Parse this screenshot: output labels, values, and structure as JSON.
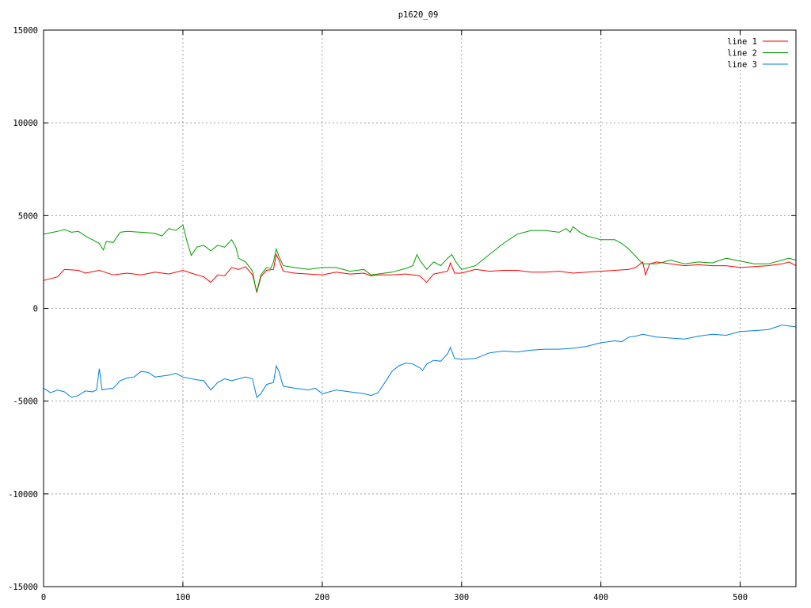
{
  "chart_data": {
    "type": "line",
    "title": "p1620_09",
    "xlabel": "",
    "ylabel": "",
    "xlim": [
      0,
      540
    ],
    "ylim": [
      -15000,
      15000
    ],
    "xticks": [
      0,
      100,
      200,
      300,
      400,
      500
    ],
    "yticks": [
      -15000,
      -10000,
      -5000,
      0,
      5000,
      10000,
      15000
    ],
    "grid": true,
    "legend_position": "top-right",
    "series": [
      {
        "name": "line 1",
        "color": "#ff0000",
        "points": [
          [
            0,
            1500
          ],
          [
            10,
            1700
          ],
          [
            15,
            2100
          ],
          [
            25,
            2050
          ],
          [
            30,
            1900
          ],
          [
            40,
            2050
          ],
          [
            50,
            1800
          ],
          [
            60,
            1900
          ],
          [
            70,
            1800
          ],
          [
            80,
            1950
          ],
          [
            90,
            1850
          ],
          [
            100,
            2050
          ],
          [
            108,
            1850
          ],
          [
            115,
            1700
          ],
          [
            120,
            1400
          ],
          [
            125,
            1800
          ],
          [
            130,
            1750
          ],
          [
            135,
            2200
          ],
          [
            140,
            2100
          ],
          [
            145,
            2250
          ],
          [
            150,
            1800
          ],
          [
            152,
            1200
          ],
          [
            153,
            850
          ],
          [
            156,
            1700
          ],
          [
            160,
            2050
          ],
          [
            165,
            2100
          ],
          [
            167,
            2900
          ],
          [
            169,
            2600
          ],
          [
            172,
            2000
          ],
          [
            180,
            1900
          ],
          [
            190,
            1850
          ],
          [
            200,
            1800
          ],
          [
            210,
            1950
          ],
          [
            220,
            1850
          ],
          [
            230,
            1900
          ],
          [
            235,
            1750
          ],
          [
            240,
            1800
          ],
          [
            250,
            1800
          ],
          [
            260,
            1850
          ],
          [
            270,
            1750
          ],
          [
            275,
            1400
          ],
          [
            280,
            1850
          ],
          [
            290,
            2000
          ],
          [
            292,
            2450
          ],
          [
            295,
            1900
          ],
          [
            300,
            1900
          ],
          [
            310,
            2100
          ],
          [
            320,
            2000
          ],
          [
            330,
            2050
          ],
          [
            340,
            2050
          ],
          [
            350,
            1950
          ],
          [
            360,
            1950
          ],
          [
            370,
            2000
          ],
          [
            380,
            1900
          ],
          [
            390,
            1950
          ],
          [
            400,
            2000
          ],
          [
            410,
            2050
          ],
          [
            420,
            2100
          ],
          [
            425,
            2200
          ],
          [
            430,
            2500
          ],
          [
            432,
            1800
          ],
          [
            435,
            2400
          ],
          [
            440,
            2500
          ],
          [
            450,
            2400
          ],
          [
            460,
            2300
          ],
          [
            470,
            2350
          ],
          [
            480,
            2300
          ],
          [
            490,
            2300
          ],
          [
            500,
            2200
          ],
          [
            510,
            2250
          ],
          [
            520,
            2300
          ],
          [
            530,
            2400
          ],
          [
            535,
            2500
          ],
          [
            540,
            2300
          ]
        ]
      },
      {
        "name": "line 2",
        "color": "#00a000",
        "points": [
          [
            0,
            4000
          ],
          [
            10,
            4150
          ],
          [
            15,
            4250
          ],
          [
            20,
            4100
          ],
          [
            25,
            4150
          ],
          [
            30,
            3900
          ],
          [
            35,
            3700
          ],
          [
            40,
            3500
          ],
          [
            43,
            3150
          ],
          [
            45,
            3600
          ],
          [
            50,
            3550
          ],
          [
            55,
            4100
          ],
          [
            60,
            4150
          ],
          [
            70,
            4100
          ],
          [
            80,
            4050
          ],
          [
            85,
            3900
          ],
          [
            90,
            4300
          ],
          [
            95,
            4200
          ],
          [
            100,
            4500
          ],
          [
            103,
            3600
          ],
          [
            106,
            2850
          ],
          [
            110,
            3300
          ],
          [
            115,
            3400
          ],
          [
            120,
            3100
          ],
          [
            125,
            3400
          ],
          [
            130,
            3300
          ],
          [
            135,
            3700
          ],
          [
            138,
            3300
          ],
          [
            140,
            2700
          ],
          [
            145,
            2500
          ],
          [
            150,
            2000
          ],
          [
            152,
            1200
          ],
          [
            153,
            900
          ],
          [
            156,
            1800
          ],
          [
            160,
            2200
          ],
          [
            163,
            2150
          ],
          [
            165,
            2500
          ],
          [
            167,
            3200
          ],
          [
            169,
            2800
          ],
          [
            172,
            2300
          ],
          [
            180,
            2200
          ],
          [
            190,
            2100
          ],
          [
            200,
            2200
          ],
          [
            210,
            2200
          ],
          [
            220,
            2000
          ],
          [
            230,
            2100
          ],
          [
            235,
            1800
          ],
          [
            240,
            1850
          ],
          [
            250,
            1950
          ],
          [
            260,
            2150
          ],
          [
            265,
            2300
          ],
          [
            268,
            2900
          ],
          [
            270,
            2600
          ],
          [
            275,
            2100
          ],
          [
            280,
            2500
          ],
          [
            285,
            2300
          ],
          [
            290,
            2700
          ],
          [
            293,
            2900
          ],
          [
            296,
            2500
          ],
          [
            300,
            2100
          ],
          [
            310,
            2300
          ],
          [
            320,
            2900
          ],
          [
            330,
            3500
          ],
          [
            340,
            4000
          ],
          [
            350,
            4200
          ],
          [
            360,
            4200
          ],
          [
            370,
            4100
          ],
          [
            375,
            4300
          ],
          [
            378,
            4100
          ],
          [
            380,
            4400
          ],
          [
            385,
            4100
          ],
          [
            390,
            3900
          ],
          [
            400,
            3700
          ],
          [
            410,
            3700
          ],
          [
            415,
            3500
          ],
          [
            420,
            3200
          ],
          [
            425,
            2800
          ],
          [
            430,
            2400
          ],
          [
            440,
            2400
          ],
          [
            450,
            2600
          ],
          [
            460,
            2400
          ],
          [
            470,
            2500
          ],
          [
            480,
            2450
          ],
          [
            490,
            2700
          ],
          [
            500,
            2550
          ],
          [
            510,
            2400
          ],
          [
            520,
            2400
          ],
          [
            530,
            2600
          ],
          [
            535,
            2700
          ],
          [
            540,
            2600
          ]
        ]
      },
      {
        "name": "line 3",
        "color": "#0080e0",
        "points": [
          [
            0,
            -4300
          ],
          [
            5,
            -4550
          ],
          [
            10,
            -4400
          ],
          [
            15,
            -4500
          ],
          [
            20,
            -4800
          ],
          [
            25,
            -4700
          ],
          [
            30,
            -4450
          ],
          [
            35,
            -4500
          ],
          [
            38,
            -4400
          ],
          [
            40,
            -3250
          ],
          [
            42,
            -4400
          ],
          [
            45,
            -4350
          ],
          [
            50,
            -4300
          ],
          [
            55,
            -3900
          ],
          [
            60,
            -3750
          ],
          [
            65,
            -3700
          ],
          [
            70,
            -3400
          ],
          [
            75,
            -3450
          ],
          [
            80,
            -3700
          ],
          [
            90,
            -3600
          ],
          [
            95,
            -3500
          ],
          [
            100,
            -3700
          ],
          [
            110,
            -3850
          ],
          [
            115,
            -3900
          ],
          [
            120,
            -4400
          ],
          [
            125,
            -4000
          ],
          [
            130,
            -3800
          ],
          [
            135,
            -3900
          ],
          [
            140,
            -3800
          ],
          [
            145,
            -3700
          ],
          [
            150,
            -3800
          ],
          [
            153,
            -4800
          ],
          [
            156,
            -4600
          ],
          [
            160,
            -4100
          ],
          [
            165,
            -4000
          ],
          [
            167,
            -3100
          ],
          [
            169,
            -3400
          ],
          [
            172,
            -4200
          ],
          [
            180,
            -4300
          ],
          [
            190,
            -4400
          ],
          [
            195,
            -4300
          ],
          [
            200,
            -4600
          ],
          [
            210,
            -4400
          ],
          [
            220,
            -4500
          ],
          [
            230,
            -4600
          ],
          [
            235,
            -4700
          ],
          [
            240,
            -4550
          ],
          [
            245,
            -4000
          ],
          [
            250,
            -3400
          ],
          [
            255,
            -3100
          ],
          [
            260,
            -2950
          ],
          [
            265,
            -3000
          ],
          [
            270,
            -3200
          ],
          [
            272,
            -3350
          ],
          [
            275,
            -3000
          ],
          [
            280,
            -2800
          ],
          [
            285,
            -2850
          ],
          [
            290,
            -2450
          ],
          [
            292,
            -2100
          ],
          [
            295,
            -2700
          ],
          [
            300,
            -2750
          ],
          [
            310,
            -2700
          ],
          [
            320,
            -2400
          ],
          [
            330,
            -2300
          ],
          [
            340,
            -2350
          ],
          [
            350,
            -2250
          ],
          [
            360,
            -2200
          ],
          [
            370,
            -2200
          ],
          [
            380,
            -2150
          ],
          [
            390,
            -2050
          ],
          [
            400,
            -1850
          ],
          [
            410,
            -1750
          ],
          [
            415,
            -1800
          ],
          [
            420,
            -1550
          ],
          [
            425,
            -1500
          ],
          [
            430,
            -1400
          ],
          [
            440,
            -1550
          ],
          [
            450,
            -1600
          ],
          [
            460,
            -1650
          ],
          [
            470,
            -1500
          ],
          [
            480,
            -1400
          ],
          [
            490,
            -1450
          ],
          [
            500,
            -1250
          ],
          [
            510,
            -1200
          ],
          [
            520,
            -1150
          ],
          [
            530,
            -900
          ],
          [
            535,
            -950
          ],
          [
            540,
            -1000
          ]
        ]
      }
    ]
  }
}
